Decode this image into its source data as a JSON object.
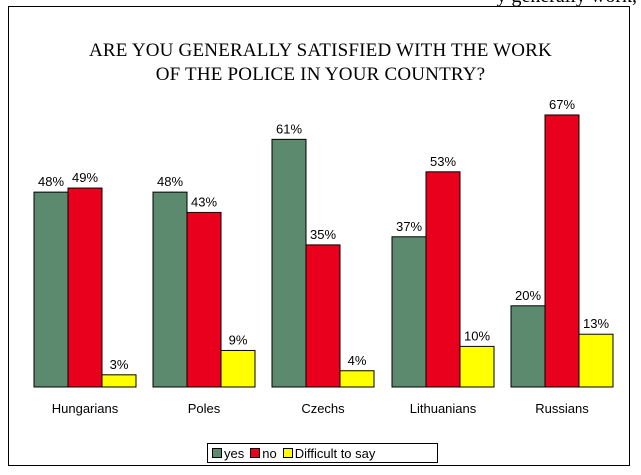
{
  "top_text": "y generally work,",
  "chart_data": {
    "type": "bar",
    "title": "ARE YOU GENERALLY SATISFIED WITH THE WORK OF THE POLICE IN YOUR COUNTRY?",
    "title_lines": [
      "ARE YOU GENERALLY SATISFIED WITH THE WORK",
      "OF THE POLICE IN YOUR COUNTRY?"
    ],
    "categories": [
      "Hungarians",
      "Poles",
      "Czechs",
      "Lithuanians",
      "Russians"
    ],
    "series": [
      {
        "name": "yes",
        "color": "#5b8a6e",
        "values": [
          48,
          48,
          61,
          37,
          20
        ]
      },
      {
        "name": "no",
        "color": "#e8001c",
        "values": [
          49,
          43,
          35,
          53,
          67
        ]
      },
      {
        "name": "Difficult to say",
        "color": "#ffff00",
        "values": [
          3,
          9,
          4,
          10,
          13
        ]
      }
    ],
    "value_suffix": "%",
    "ylim": [
      0,
      100
    ],
    "grid": false,
    "legend_position": "bottom-center"
  }
}
